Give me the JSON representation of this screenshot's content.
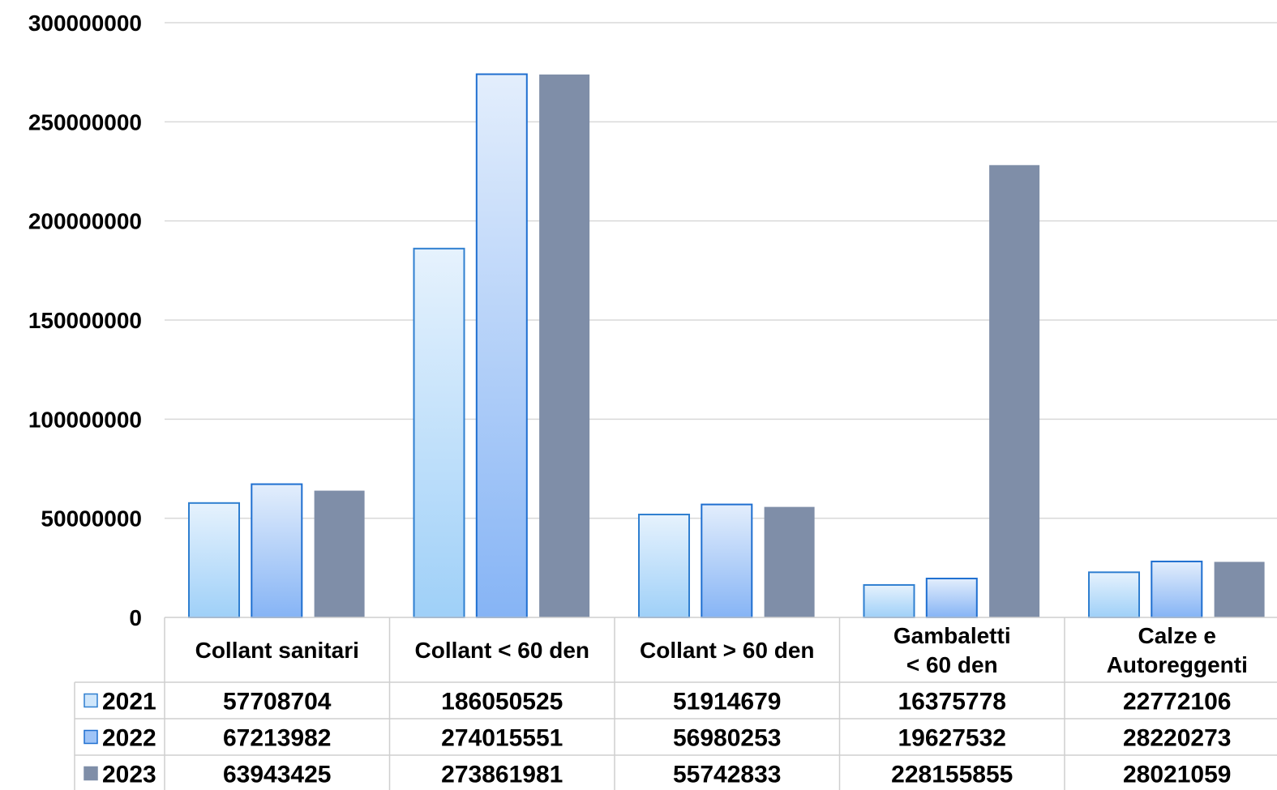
{
  "chart_data": {
    "type": "bar",
    "categories": [
      "Collant sanitari",
      "Collant < 60 den",
      "Collant > 60 den",
      "Gambaletti\n< 60 den",
      "Calze e\nAutoreggenti"
    ],
    "series": [
      {
        "name": "2021",
        "values": [
          57708704,
          186050525,
          51914679,
          16375778,
          22772106
        ],
        "color": "#9fd0f8"
      },
      {
        "name": "2022",
        "values": [
          67213982,
          274015551,
          56980253,
          19627532,
          28220273
        ],
        "color": "#7faef5"
      },
      {
        "name": "2023",
        "values": [
          63943425,
          273861981,
          55742833,
          228155855,
          28021059
        ],
        "color": "#7f8ea8"
      }
    ],
    "y_ticks": [
      "0",
      "50000000",
      "100000000",
      "150000000",
      "200000000",
      "250000000",
      "300000000"
    ],
    "ylim": [
      0,
      300000000
    ],
    "title": "",
    "xlabel": "",
    "ylabel": "",
    "grid": true,
    "legend": "data-table-left"
  }
}
